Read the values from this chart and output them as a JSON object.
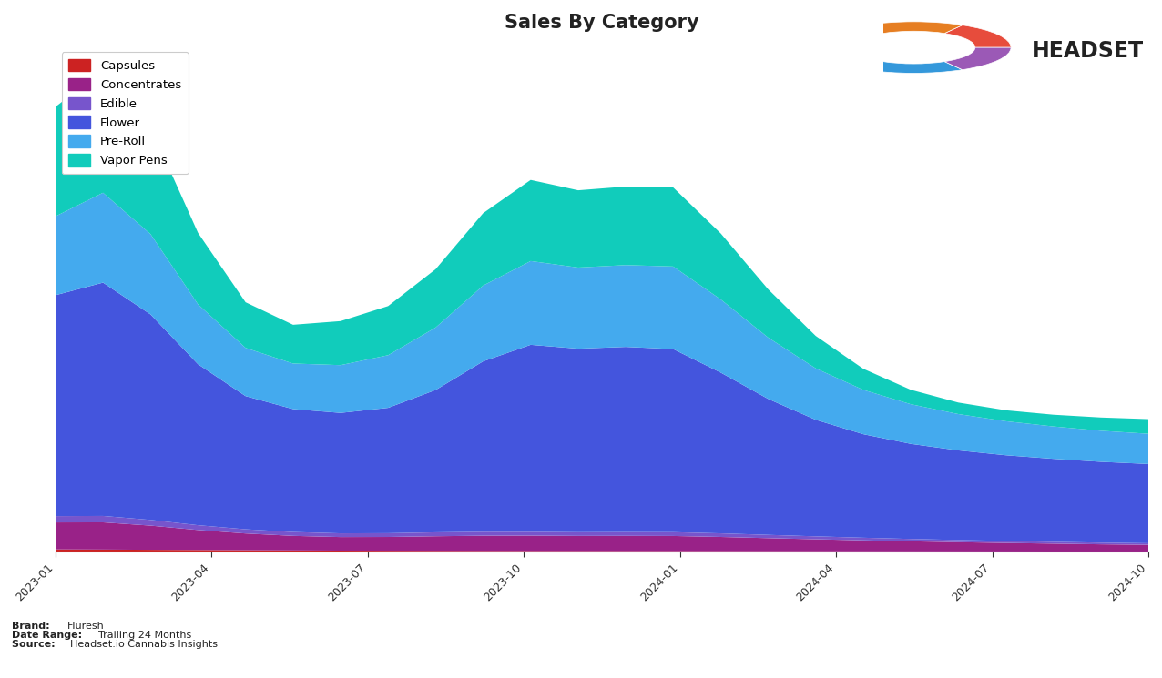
{
  "title": "Sales By Category",
  "title_fontsize": 15,
  "title_fontweight": "bold",
  "categories": [
    "Capsules",
    "Concentrates",
    "Edible",
    "Flower",
    "Pre-Roll",
    "Vapor Pens"
  ],
  "colors": {
    "Capsules": "#cc2222",
    "Concentrates": "#992288",
    "Edible": "#7755cc",
    "Flower": "#4455dd",
    "Pre-Roll": "#44aaee",
    "Vapor Pens": "#11ccbb"
  },
  "x_ticks": [
    "2023-01",
    "2023-04",
    "2023-07",
    "2023-10",
    "2024-01",
    "2024-04",
    "2024-07",
    "2024-10"
  ],
  "brand_label": "Fluresh",
  "date_range_label": "Trailing 24 Months",
  "source_label": "Headset.io Cannabis Insights",
  "background_color": "#ffffff",
  "plot_background": "#ffffff",
  "n_points": 24,
  "data": {
    "Capsules": [
      120,
      110,
      100,
      90,
      80,
      70,
      60,
      55,
      50,
      45,
      42,
      40,
      38,
      36,
      34,
      32,
      30,
      28,
      26,
      24,
      22,
      20,
      18,
      16
    ],
    "Concentrates": [
      1200,
      1350,
      1100,
      900,
      750,
      650,
      600,
      620,
      680,
      700,
      720,
      680,
      700,
      720,
      650,
      600,
      550,
      500,
      460,
      420,
      390,
      360,
      330,
      300
    ],
    "Edible": [
      280,
      320,
      260,
      210,
      190,
      175,
      165,
      170,
      180,
      185,
      175,
      165,
      175,
      180,
      165,
      150,
      135,
      120,
      108,
      98,
      90,
      84,
      78,
      72
    ],
    "Flower": [
      9500,
      12000,
      9500,
      7000,
      5800,
      5600,
      5400,
      5600,
      6200,
      8000,
      9200,
      8000,
      8500,
      9000,
      7200,
      6200,
      5200,
      4700,
      4300,
      4100,
      3900,
      3800,
      3700,
      3600
    ],
    "Pre-Roll": [
      3200,
      4800,
      3800,
      2500,
      2100,
      2000,
      2200,
      2300,
      2800,
      3500,
      4200,
      3500,
      3700,
      4100,
      3300,
      2800,
      2300,
      2000,
      1800,
      1650,
      1550,
      1480,
      1420,
      1370
    ],
    "Vapor Pens": [
      4500,
      6500,
      5200,
      3000,
      1800,
      1500,
      2200,
      2100,
      2600,
      3300,
      4200,
      3200,
      3600,
      4000,
      3000,
      2200,
      1400,
      900,
      600,
      500,
      480,
      530,
      600,
      700
    ]
  }
}
